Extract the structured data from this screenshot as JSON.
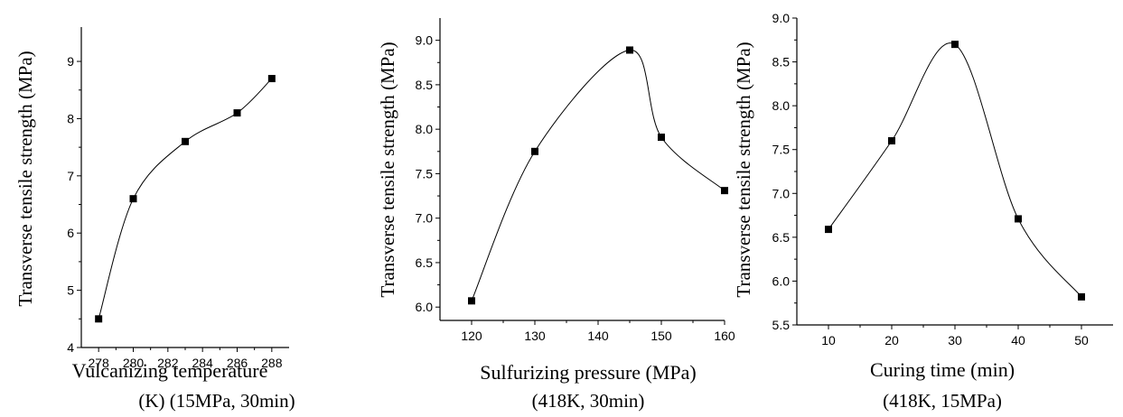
{
  "chart_data": [
    {
      "type": "scatter",
      "x": [
        278,
        280,
        283,
        286,
        288
      ],
      "y": [
        4.5,
        6.6,
        7.6,
        8.1,
        8.7
      ],
      "xlim": [
        277,
        289
      ],
      "ylim": [
        4,
        9.6
      ],
      "xticks": [
        "278",
        "280",
        "282",
        "284",
        "286",
        "288"
      ],
      "yticks": [
        "4",
        "5",
        "6",
        "7",
        "8",
        "9"
      ],
      "ylabel": "Transverse tensile strength (MPa)",
      "xlabel": "Vulcanizing temperature",
      "condition": "(K)  (15MPa, 30min)",
      "smooth_curve": true,
      "grid": false
    },
    {
      "type": "scatter",
      "x": [
        120,
        130,
        145,
        150,
        160
      ],
      "y": [
        6.07,
        7.75,
        8.89,
        7.91,
        7.31
      ],
      "xlim": [
        115,
        160
      ],
      "ylim": [
        5.85,
        9.25
      ],
      "xticks": [
        "120",
        "130",
        "140",
        "150",
        "160"
      ],
      "yticks": [
        "6.0",
        "6.5",
        "7.0",
        "7.5",
        "8.0",
        "8.5",
        "9.0"
      ],
      "ylabel": "Transverse tensile strength (MPa)",
      "xlabel": "Sulfurizing pressure (MPa)",
      "condition": "(418K, 30min)",
      "smooth_curve": true,
      "grid": false
    },
    {
      "type": "scatter",
      "x": [
        10,
        20,
        30,
        40,
        50
      ],
      "y": [
        6.59,
        7.6,
        8.7,
        6.71,
        5.82
      ],
      "xlim": [
        5,
        55
      ],
      "ylim": [
        5.5,
        9.0
      ],
      "xticks": [
        "10",
        "20",
        "30",
        "40",
        "50"
      ],
      "yticks": [
        "5.5",
        "6.0",
        "6.5",
        "7.0",
        "7.5",
        "8.0",
        "8.5",
        "9.0"
      ],
      "ylabel": "Transverse tensile strength (MPa)",
      "xlabel": "Curing time (min)",
      "condition": "(418K, 15MPa)",
      "smooth_curve": true,
      "grid": false
    }
  ]
}
